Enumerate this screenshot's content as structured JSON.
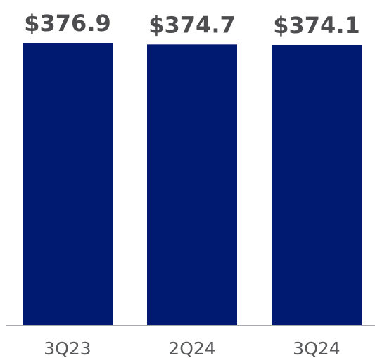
{
  "chart_data": {
    "type": "bar",
    "title": "",
    "xlabel": "",
    "ylabel": "",
    "categories": [
      "3Q23",
      "2Q24",
      "3Q24"
    ],
    "values": [
      376.9,
      374.7,
      374.1
    ],
    "data_labels": [
      "$376.9",
      "$374.7",
      "$374.1"
    ],
    "ylim": [
      0,
      376.9
    ],
    "grid": false,
    "legend": "none",
    "colors": {
      "bar": "#001a72",
      "axis": "#a7a9ac",
      "data_label": "#4d4d4f",
      "tick_label": "#58595b"
    }
  }
}
